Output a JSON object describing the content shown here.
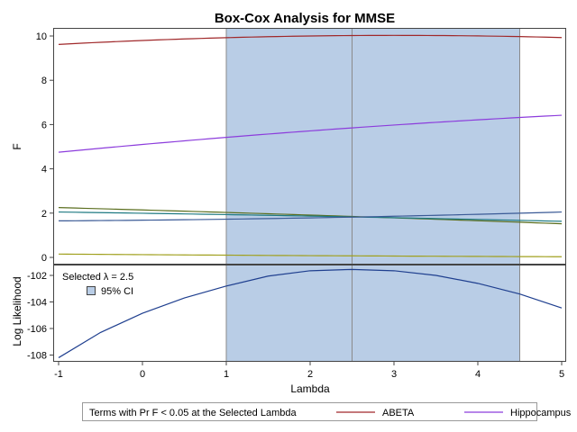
{
  "chart_data": {
    "type": "line",
    "title": "Box-Cox Analysis for MMSE",
    "xlabel": "Lambda",
    "xlim": [
      -1,
      5
    ],
    "x_ticks": [
      "-1",
      "0",
      "1",
      "2",
      "3",
      "4",
      "5"
    ],
    "ci": {
      "lower": 1.0,
      "upper": 4.5,
      "color": "#b9cde6"
    },
    "selected_lambda": 2.5,
    "inset": {
      "selected_label": "Selected λ = 2.5",
      "ci_label": "95% CI"
    },
    "top_panel": {
      "ylabel": "F",
      "ylim": [
        0,
        10
      ],
      "y_ticks": [
        "0",
        "2",
        "4",
        "6",
        "8",
        "10"
      ],
      "x": [
        -1,
        5
      ],
      "series": [
        {
          "name": "ABETA",
          "color": "#a0282a",
          "curve": "quad",
          "points": [
            [
              -1,
              9.62
            ],
            [
              2.5,
              10.02
            ],
            [
              5,
              9.93
            ]
          ]
        },
        {
          "name": "Hippocampus",
          "color": "#8c3cdc",
          "curve": "quad",
          "points": [
            [
              -1,
              4.75
            ],
            [
              2.5,
              5.85
            ],
            [
              5,
              6.42
            ]
          ]
        },
        {
          "color": "#5a6e1e",
          "curve": "quad",
          "points": [
            [
              -1,
              2.25
            ],
            [
              2.5,
              1.85
            ],
            [
              5,
              1.52
            ]
          ]
        },
        {
          "color": "#1e7a82",
          "curve": "quad",
          "points": [
            [
              -1,
              2.05
            ],
            [
              2.5,
              1.83
            ],
            [
              5,
              1.63
            ]
          ]
        },
        {
          "color": "#3a5a96",
          "curve": "quad",
          "points": [
            [
              -1,
              1.65
            ],
            [
              2.5,
              1.82
            ],
            [
              5,
              2.05
            ]
          ]
        },
        {
          "color": "#a0a01e",
          "curve": "quad",
          "points": [
            [
              -1,
              0.15
            ],
            [
              2.5,
              0.07
            ],
            [
              5,
              0.03
            ]
          ]
        }
      ]
    },
    "bottom_panel": {
      "ylabel": "Log Likelihood",
      "ylim": [
        -108.1,
        -101.3
      ],
      "y_ticks": [
        "-108",
        "-106",
        "-104",
        "-102"
      ],
      "series": [
        {
          "color": "#1f3f8f",
          "x": [
            -1,
            -0.5,
            0,
            0.5,
            1,
            1.5,
            2,
            2.5,
            3,
            3.5,
            4,
            4.5,
            5
          ],
          "y": [
            -108.2,
            -106.3,
            -104.85,
            -103.7,
            -102.8,
            -102.05,
            -101.65,
            -101.55,
            -101.65,
            -102.0,
            -102.6,
            -103.4,
            -104.45
          ]
        }
      ]
    },
    "legend": {
      "title": "Terms with Pr F < 0.05 at the Selected Lambda",
      "items": [
        {
          "label": "ABETA",
          "color": "#a0282a"
        },
        {
          "label": "Hippocampus",
          "color": "#8c3cdc"
        }
      ]
    }
  }
}
